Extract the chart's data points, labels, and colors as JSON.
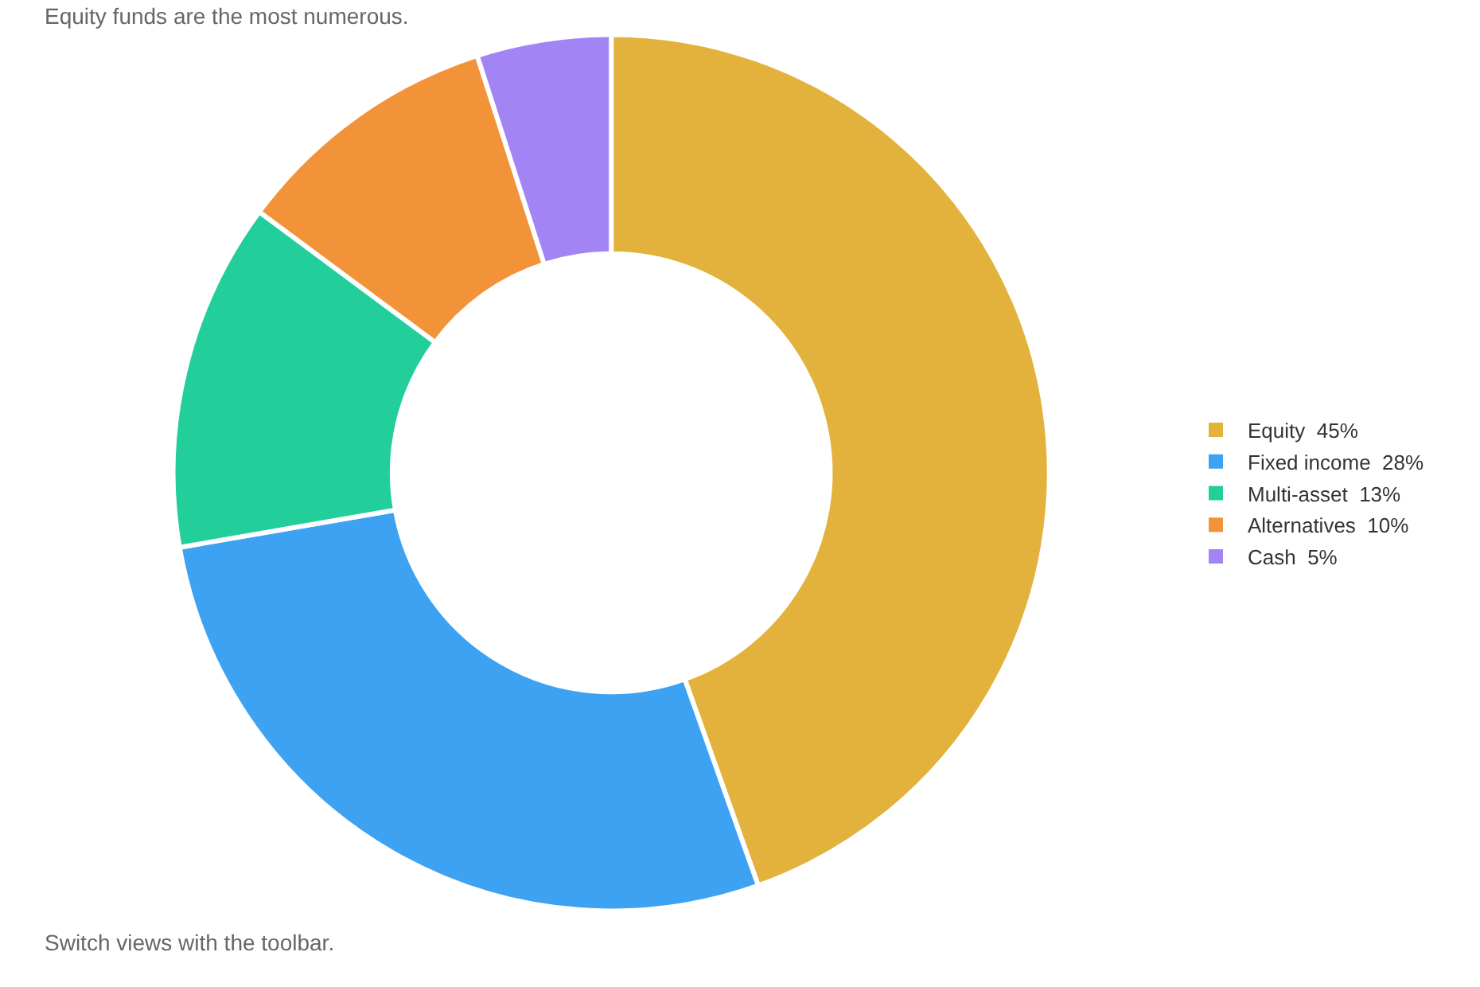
{
  "chart_data": {
    "type": "donut",
    "subtitle": "Equity funds are the most numerous.",
    "categories": [
      "Equity",
      "Fixed income",
      "Multi-asset",
      "Alternatives",
      "Cash"
    ],
    "values": [
      45,
      28,
      13,
      10,
      5
    ],
    "value_labels": [
      "45%",
      "28%",
      "13%",
      "10%",
      "5%"
    ],
    "colors": [
      "#e3b23c",
      "#3ea2f2",
      "#22cf9b",
      "#f2933a",
      "#a384f5"
    ],
    "legend": "right",
    "annotations": [
      "Switch views with the toolbar."
    ]
  }
}
